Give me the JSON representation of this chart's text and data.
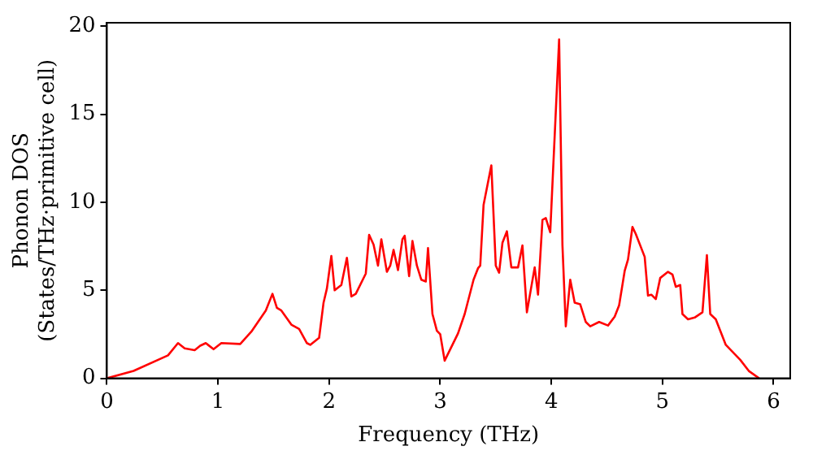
{
  "chart_data": {
    "type": "line",
    "xlabel": "Frequency (THz)",
    "ylabel": "Phonon DOS\n(States/THz·primitive cell)",
    "xlim": [
      0,
      6.15
    ],
    "xticks": [
      0,
      1,
      2,
      3,
      4,
      5,
      6
    ],
    "ylim": [
      0,
      20.2
    ],
    "yticks": [
      0,
      5,
      10,
      15,
      20
    ],
    "grid": false,
    "legend": false,
    "marker": "none",
    "line_style": "solid",
    "x": [
      0,
      0.24,
      0.55,
      0.64,
      0.7,
      0.79,
      0.84,
      0.89,
      0.96,
      1.03,
      1.2,
      1.3,
      1.43,
      1.49,
      1.53,
      1.57,
      1.66,
      1.73,
      1.8,
      1.83,
      1.91,
      1.95,
      1.98,
      2.02,
      2.05,
      2.11,
      2.16,
      2.2,
      2.24,
      2.33,
      2.36,
      2.4,
      2.44,
      2.47,
      2.52,
      2.55,
      2.58,
      2.62,
      2.66,
      2.68,
      2.72,
      2.75,
      2.79,
      2.83,
      2.87,
      2.89,
      2.93,
      2.97,
      3.0,
      3.04,
      3.16,
      3.22,
      3.3,
      3.34,
      3.36,
      3.39,
      3.46,
      3.5,
      3.53,
      3.56,
      3.6,
      3.64,
      3.7,
      3.74,
      3.78,
      3.85,
      3.88,
      3.92,
      3.95,
      3.99,
      4.07,
      4.1,
      4.13,
      4.17,
      4.21,
      4.26,
      4.31,
      4.35,
      4.43,
      4.51,
      4.57,
      4.61,
      4.66,
      4.69,
      4.73,
      4.76,
      4.84,
      4.87,
      4.9,
      4.94,
      4.98,
      5.05,
      5.09,
      5.12,
      5.16,
      5.18,
      5.23,
      5.29,
      5.36,
      5.4,
      5.43,
      5.48,
      5.57,
      5.7,
      5.78,
      5.87
    ],
    "series": [
      {
        "color": "#ff0000",
        "values": [
          0,
          0.42,
          1.3,
          2.0,
          1.7,
          1.6,
          1.85,
          2.0,
          1.65,
          2.0,
          1.95,
          2.65,
          3.85,
          4.8,
          4.0,
          3.85,
          3.05,
          2.8,
          2.0,
          1.9,
          2.3,
          4.3,
          5.1,
          6.95,
          5.0,
          5.3,
          6.85,
          4.65,
          4.8,
          5.95,
          8.15,
          7.6,
          6.4,
          7.9,
          6.05,
          6.4,
          7.3,
          6.15,
          7.9,
          8.1,
          5.8,
          7.8,
          6.4,
          5.6,
          5.5,
          7.4,
          3.65,
          2.7,
          2.5,
          1.0,
          2.55,
          3.65,
          5.6,
          6.25,
          6.4,
          9.85,
          12.1,
          6.4,
          6.0,
          7.7,
          8.35,
          6.3,
          6.3,
          7.55,
          3.75,
          6.3,
          4.75,
          9.0,
          9.1,
          8.3,
          19.25,
          7.55,
          2.95,
          5.6,
          4.3,
          4.2,
          3.2,
          2.95,
          3.2,
          3.0,
          3.5,
          4.15,
          6.1,
          6.75,
          8.6,
          8.2,
          6.9,
          4.7,
          4.75,
          4.5,
          5.7,
          6.05,
          5.9,
          5.2,
          5.3,
          3.65,
          3.35,
          3.45,
          3.75,
          7.0,
          3.65,
          3.35,
          1.9,
          1.05,
          0.4,
          0
        ]
      }
    ]
  }
}
